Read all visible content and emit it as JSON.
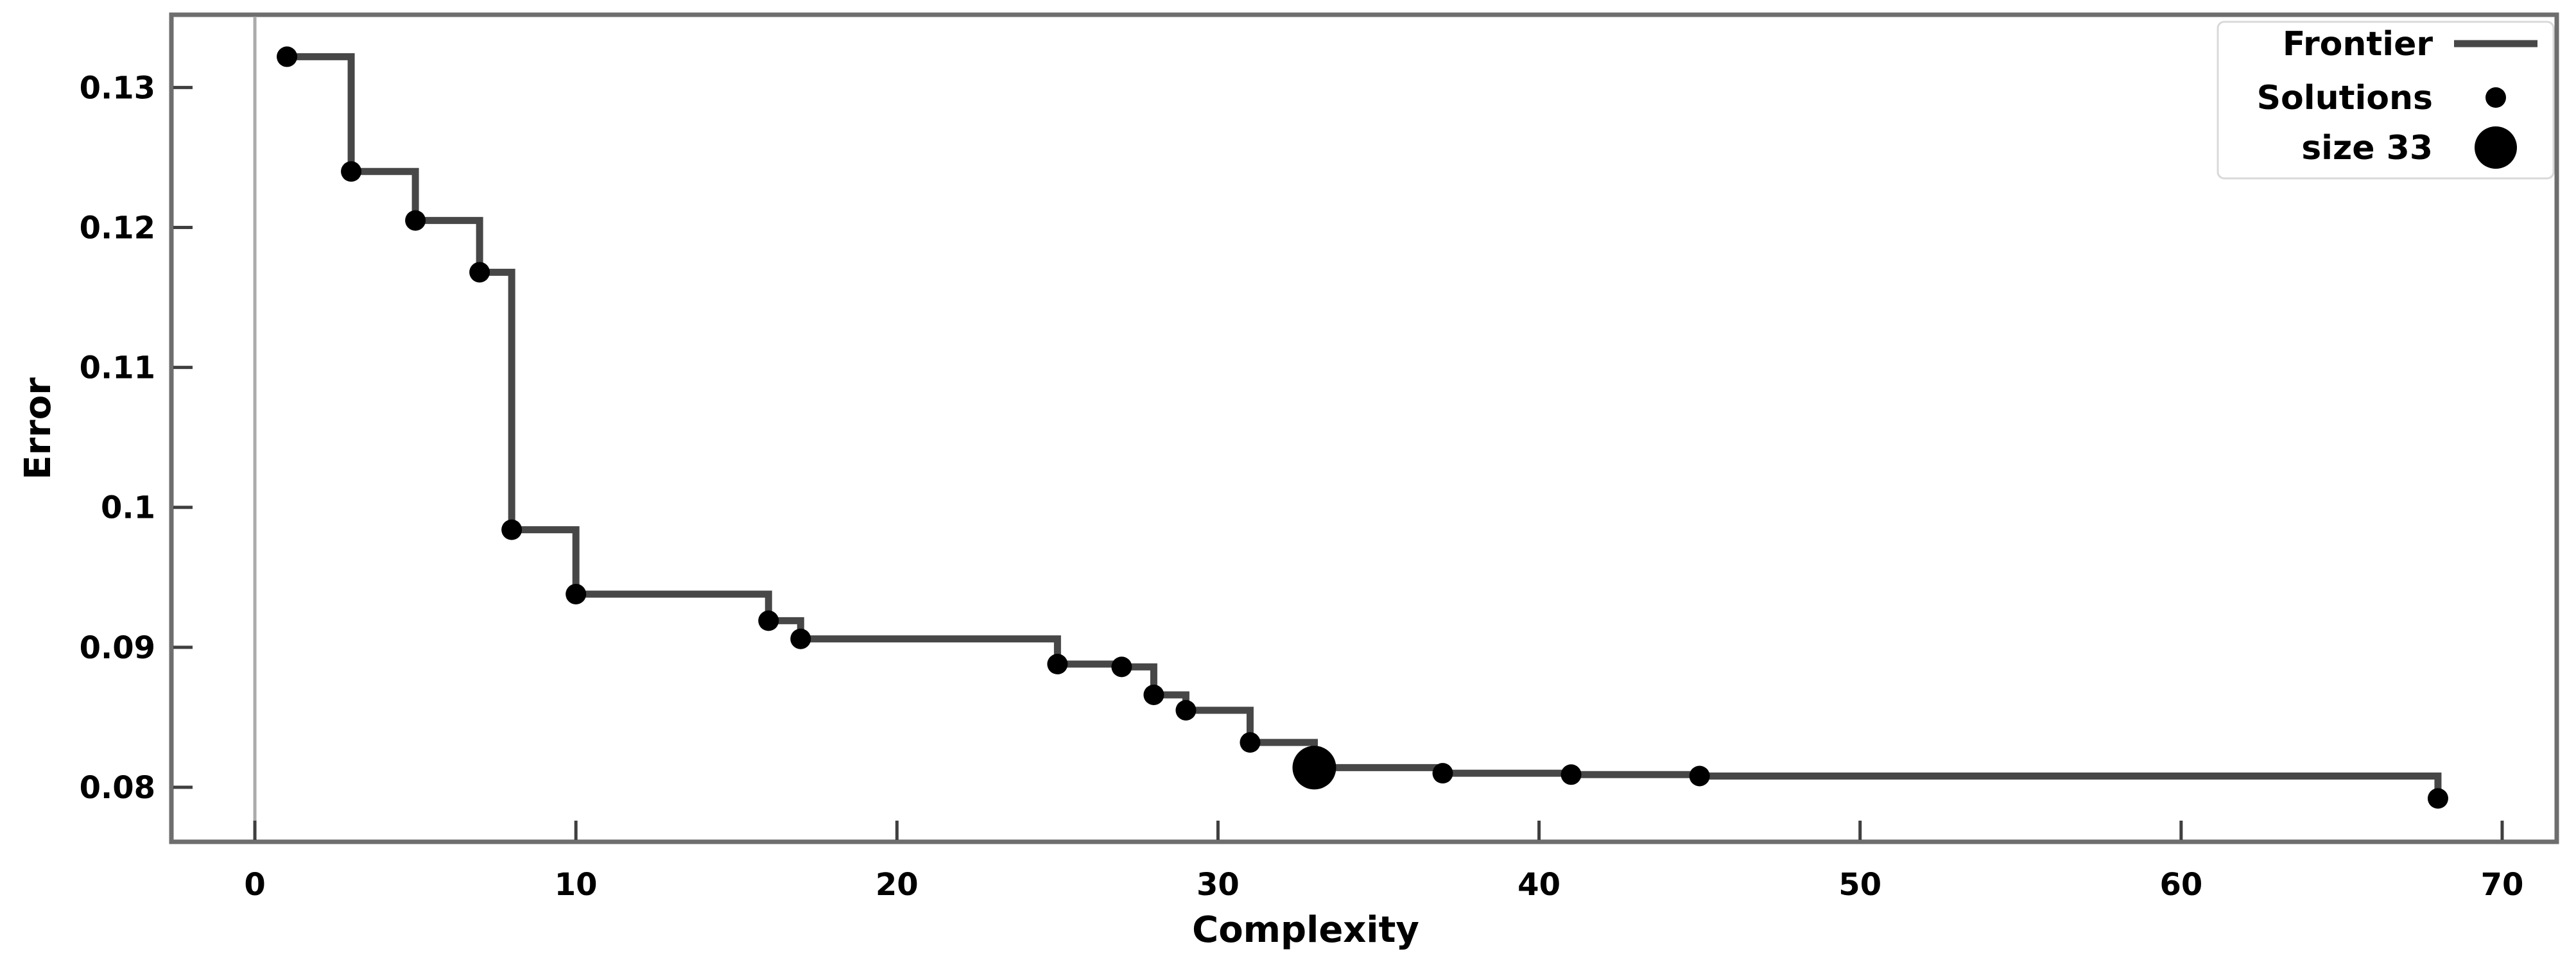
{
  "figure": {
    "background_color": "#ffffff",
    "frontier_line_color": "#474747",
    "point_color": "#000000",
    "border_color": "#6e6e6e",
    "zero_gridline_color": "#ababab"
  },
  "chart_data": {
    "type": "line",
    "subtype": "pareto-frontier-step-with-scatter",
    "title": "",
    "xlabel": "Complexity",
    "ylabel": "Error",
    "xlim": [
      -2.6,
      71.7
    ],
    "ylim": [
      0.0761,
      0.1352
    ],
    "x_ticks": [
      0,
      10,
      20,
      30,
      40,
      50,
      60,
      70
    ],
    "y_ticks": [
      0.08,
      0.09,
      0.1,
      0.11,
      0.12,
      0.13
    ],
    "grid": "single vertical gridline at x=0",
    "zero_line_x": 0,
    "legend": {
      "position": "upper right",
      "marker_side": "right",
      "entries": [
        {
          "label": "Frontier",
          "marker": "line"
        },
        {
          "label": "Solutions",
          "marker": "dot-small"
        },
        {
          "label": "size 33",
          "marker": "dot-large"
        }
      ]
    },
    "series": [
      {
        "name": "Frontier",
        "style": "step-post",
        "points_ref": "all solution points connected by horizontal-then-vertical steps"
      },
      {
        "name": "Solutions",
        "style": "scatter",
        "marker_radius_px": 16
      },
      {
        "name": "size 33",
        "style": "scatter-highlight",
        "marker_radius_px": 34,
        "highlight_x": 33
      }
    ],
    "points": [
      {
        "x": 1,
        "y": 0.1322
      },
      {
        "x": 3,
        "y": 0.124
      },
      {
        "x": 5,
        "y": 0.1205
      },
      {
        "x": 7,
        "y": 0.1168
      },
      {
        "x": 8,
        "y": 0.0984
      },
      {
        "x": 10,
        "y": 0.0938
      },
      {
        "x": 16,
        "y": 0.0919
      },
      {
        "x": 17,
        "y": 0.0906
      },
      {
        "x": 25,
        "y": 0.0888
      },
      {
        "x": 27,
        "y": 0.0886
      },
      {
        "x": 28,
        "y": 0.0866
      },
      {
        "x": 29,
        "y": 0.0855
      },
      {
        "x": 31,
        "y": 0.0832
      },
      {
        "x": 33,
        "y": 0.0814,
        "highlight": true
      },
      {
        "x": 37,
        "y": 0.081
      },
      {
        "x": 41,
        "y": 0.0809
      },
      {
        "x": 45,
        "y": 0.0808
      },
      {
        "x": 68,
        "y": 0.0792
      }
    ]
  }
}
